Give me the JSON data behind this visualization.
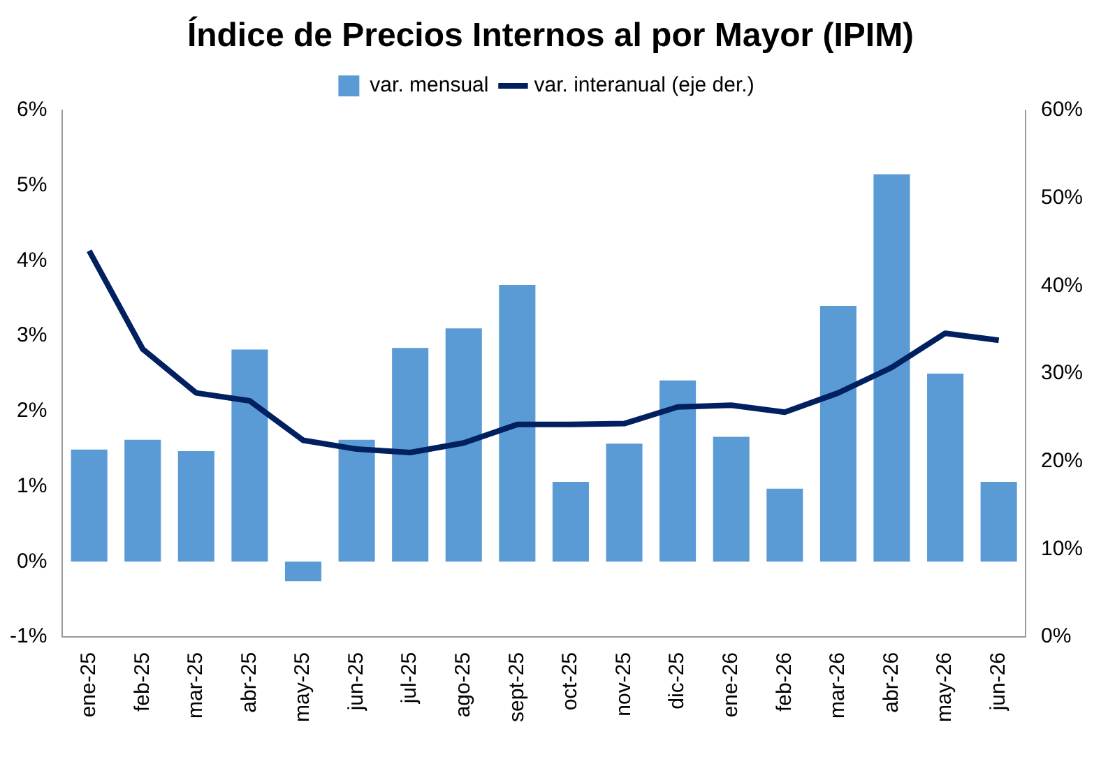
{
  "chart_data": {
    "type": "bar",
    "title": "Índice de Precios Internos al por Mayor (IPIM)",
    "categories": [
      "ene-25",
      "feb-25",
      "mar-25",
      "abr-25",
      "may-25",
      "jun-25",
      "jul-25",
      "ago-25",
      "sept-25",
      "oct-25",
      "nov-25",
      "dic-25",
      "ene-26",
      "feb-26",
      "mar-26",
      "abr-26",
      "may-26",
      "jun-26"
    ],
    "series": [
      {
        "name": "var. mensual",
        "color": "#5b9bd5",
        "values": [
          1.49,
          1.62,
          1.47,
          2.82,
          -0.26,
          1.62,
          2.84,
          3.1,
          3.68,
          1.06,
          1.57,
          2.41,
          1.66,
          0.97,
          3.4,
          5.15,
          2.5,
          1.06
        ]
      },
      {
        "name": "var. interanual (eje der.)",
        "type": "line",
        "axis": "y2",
        "color": "#002060",
        "values": [
          44.0,
          32.8,
          27.8,
          26.9,
          22.4,
          21.4,
          21.0,
          22.1,
          24.2,
          24.2,
          24.3,
          26.2,
          26.4,
          25.6,
          27.8,
          30.7,
          34.6,
          33.8
        ]
      }
    ],
    "ylim": [
      -1,
      6
    ],
    "yticks": [
      {
        "value": -1,
        "label": "-1%"
      },
      {
        "value": 0,
        "label": "0%"
      },
      {
        "value": 1,
        "label": "1%"
      },
      {
        "value": 2,
        "label": "2%"
      },
      {
        "value": 3,
        "label": "3%"
      },
      {
        "value": 4,
        "label": "4%"
      },
      {
        "value": 5,
        "label": "5%"
      },
      {
        "value": 6,
        "label": "6%"
      }
    ],
    "y2lim": [
      0,
      60
    ],
    "y2ticks": [
      {
        "value": 0,
        "label": "0%"
      },
      {
        "value": 10,
        "label": "10%"
      },
      {
        "value": 20,
        "label": "20%"
      },
      {
        "value": 30,
        "label": "30%"
      },
      {
        "value": 40,
        "label": "40%"
      },
      {
        "value": 50,
        "label": "50%"
      },
      {
        "value": 60,
        "label": "60%"
      }
    ],
    "grid": false,
    "legend": "top",
    "marker": "none",
    "line_style": "solid"
  }
}
